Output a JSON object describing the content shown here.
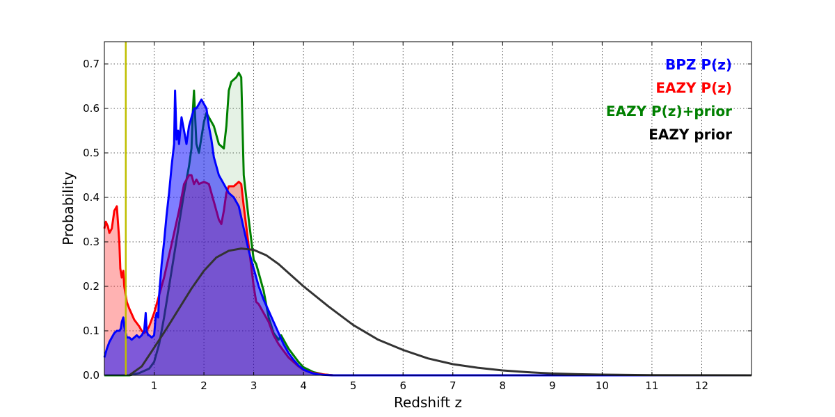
{
  "chart_data": {
    "type": "area",
    "xlabel": "Redshift z",
    "ylabel": "Probability",
    "xlim": [
      0,
      13
    ],
    "ylim": [
      0,
      0.75
    ],
    "grid": true,
    "x_ticks": [
      1,
      2,
      3,
      4,
      5,
      6,
      7,
      8,
      9,
      10,
      11,
      12
    ],
    "x_tick_labels": [
      "1",
      "2",
      "3",
      "4",
      "5",
      "6",
      "7",
      "8",
      "9",
      "10",
      "11",
      "12"
    ],
    "y_ticks": [
      0.0,
      0.1,
      0.2,
      0.3,
      0.4,
      0.5,
      0.6,
      0.7
    ],
    "y_tick_labels": [
      "0.0",
      "0.1",
      "0.2",
      "0.3",
      "0.4",
      "0.5",
      "0.6",
      "0.7"
    ],
    "vline": {
      "x": 0.43,
      "color": "#bfbf00"
    },
    "legend_position": "top-right",
    "legend": [
      {
        "label": "BPZ P(z)",
        "color": "#0000ff"
      },
      {
        "label": "EAZY P(z)",
        "color": "#ff0000"
      },
      {
        "label": "EAZY P(z)+prior",
        "color": "#008000"
      },
      {
        "label": "EAZY prior",
        "color": "#000000"
      }
    ],
    "series": [
      {
        "name": "EAZY P(z)+prior",
        "color": "#008000",
        "fill": "#008000",
        "fill_opacity": 0.1,
        "x": [
          0.0,
          0.5,
          0.7,
          0.8,
          0.9,
          1.0,
          1.1,
          1.2,
          1.3,
          1.4,
          1.5,
          1.6,
          1.7,
          1.75,
          1.78,
          1.8,
          1.82,
          1.85,
          1.9,
          2.0,
          2.05,
          2.1,
          2.2,
          2.3,
          2.4,
          2.45,
          2.5,
          2.55,
          2.6,
          2.65,
          2.7,
          2.75,
          2.8,
          2.9,
          3.0,
          3.05,
          3.1,
          3.2,
          3.3,
          3.4,
          3.5,
          3.55,
          3.6,
          3.7,
          3.8,
          3.9,
          4.0,
          4.2,
          4.4,
          4.6,
          5.0,
          13.0
        ],
        "y": [
          0.0,
          0.0,
          0.005,
          0.01,
          0.015,
          0.03,
          0.07,
          0.13,
          0.2,
          0.27,
          0.34,
          0.41,
          0.47,
          0.51,
          0.6,
          0.64,
          0.59,
          0.52,
          0.5,
          0.57,
          0.59,
          0.58,
          0.56,
          0.52,
          0.51,
          0.56,
          0.64,
          0.66,
          0.665,
          0.67,
          0.68,
          0.67,
          0.45,
          0.35,
          0.26,
          0.25,
          0.23,
          0.19,
          0.13,
          0.095,
          0.08,
          0.09,
          0.08,
          0.06,
          0.045,
          0.03,
          0.018,
          0.007,
          0.002,
          0.0,
          0.0,
          0.0
        ]
      },
      {
        "name": "EAZY P(z)",
        "color": "#ff0000",
        "fill": "#ff0000",
        "fill_opacity": 0.3,
        "x": [
          0.0,
          0.03,
          0.07,
          0.1,
          0.15,
          0.2,
          0.25,
          0.3,
          0.32,
          0.35,
          0.38,
          0.4,
          0.45,
          0.5,
          0.6,
          0.7,
          0.75,
          0.8,
          0.85,
          0.9,
          1.0,
          1.1,
          1.2,
          1.3,
          1.4,
          1.5,
          1.6,
          1.7,
          1.75,
          1.8,
          1.85,
          1.9,
          2.0,
          2.1,
          2.2,
          2.3,
          2.35,
          2.4,
          2.45,
          2.5,
          2.6,
          2.7,
          2.75,
          2.8,
          2.9,
          3.0,
          3.05,
          3.1,
          3.2,
          3.3,
          3.4,
          3.5,
          3.6,
          3.7,
          3.8,
          3.9,
          4.0,
          4.2,
          4.4,
          4.6,
          5.0,
          13.0
        ],
        "y": [
          0.33,
          0.345,
          0.335,
          0.32,
          0.33,
          0.37,
          0.38,
          0.3,
          0.24,
          0.22,
          0.235,
          0.2,
          0.165,
          0.15,
          0.125,
          0.11,
          0.1,
          0.095,
          0.1,
          0.11,
          0.14,
          0.18,
          0.22,
          0.27,
          0.32,
          0.37,
          0.43,
          0.45,
          0.45,
          0.43,
          0.44,
          0.43,
          0.435,
          0.43,
          0.39,
          0.35,
          0.34,
          0.37,
          0.41,
          0.425,
          0.425,
          0.435,
          0.43,
          0.38,
          0.29,
          0.2,
          0.165,
          0.16,
          0.14,
          0.12,
          0.09,
          0.07,
          0.055,
          0.04,
          0.03,
          0.02,
          0.012,
          0.005,
          0.002,
          0.0,
          0.0,
          0.0
        ]
      },
      {
        "name": "BPZ P(z)",
        "color": "#0000ff",
        "fill": "#0000ff",
        "fill_opacity": 0.5,
        "x": [
          0.0,
          0.05,
          0.1,
          0.15,
          0.2,
          0.25,
          0.3,
          0.33,
          0.35,
          0.38,
          0.4,
          0.45,
          0.5,
          0.55,
          0.6,
          0.65,
          0.7,
          0.75,
          0.8,
          0.83,
          0.85,
          0.88,
          0.9,
          0.95,
          1.0,
          1.03,
          1.05,
          1.08,
          1.1,
          1.15,
          1.2,
          1.25,
          1.3,
          1.35,
          1.4,
          1.42,
          1.45,
          1.48,
          1.5,
          1.55,
          1.6,
          1.65,
          1.7,
          1.75,
          1.8,
          1.85,
          1.9,
          1.95,
          2.0,
          2.05,
          2.1,
          2.15,
          2.2,
          2.3,
          2.4,
          2.5,
          2.6,
          2.7,
          2.8,
          2.9,
          3.0,
          3.1,
          3.2,
          3.3,
          3.4,
          3.5,
          3.6,
          3.7,
          3.8,
          3.9,
          4.0,
          4.1,
          4.2,
          4.3,
          4.4,
          4.6,
          5.0,
          13.0
        ],
        "y": [
          0.04,
          0.06,
          0.075,
          0.085,
          0.095,
          0.1,
          0.1,
          0.105,
          0.12,
          0.13,
          0.11,
          0.085,
          0.085,
          0.08,
          0.085,
          0.09,
          0.085,
          0.09,
          0.1,
          0.14,
          0.1,
          0.09,
          0.09,
          0.085,
          0.09,
          0.13,
          0.14,
          0.13,
          0.18,
          0.25,
          0.3,
          0.36,
          0.41,
          0.47,
          0.52,
          0.64,
          0.53,
          0.55,
          0.52,
          0.58,
          0.55,
          0.52,
          0.56,
          0.58,
          0.6,
          0.6,
          0.61,
          0.62,
          0.61,
          0.6,
          0.56,
          0.53,
          0.49,
          0.45,
          0.43,
          0.41,
          0.4,
          0.38,
          0.33,
          0.28,
          0.24,
          0.2,
          0.17,
          0.145,
          0.12,
          0.095,
          0.07,
          0.05,
          0.035,
          0.022,
          0.013,
          0.008,
          0.004,
          0.002,
          0.001,
          0.0,
          0.0,
          0.0
        ]
      },
      {
        "name": "EAZY prior",
        "color": "#333333",
        "fill": null,
        "fill_opacity": 0,
        "x": [
          0.5,
          0.75,
          1.0,
          1.25,
          1.5,
          1.75,
          2.0,
          2.25,
          2.5,
          2.75,
          3.0,
          3.25,
          3.5,
          3.75,
          4.0,
          4.5,
          5.0,
          5.5,
          6.0,
          6.5,
          7.0,
          7.5,
          8.0,
          8.5,
          9.0,
          9.5,
          10.0,
          11.0,
          12.0,
          13.0
        ],
        "y": [
          0.0,
          0.02,
          0.062,
          0.105,
          0.15,
          0.195,
          0.235,
          0.265,
          0.28,
          0.285,
          0.282,
          0.27,
          0.25,
          0.225,
          0.2,
          0.155,
          0.113,
          0.08,
          0.057,
          0.038,
          0.025,
          0.017,
          0.011,
          0.007,
          0.004,
          0.0025,
          0.0015,
          0.0005,
          0.0002,
          0.0
        ]
      }
    ]
  }
}
